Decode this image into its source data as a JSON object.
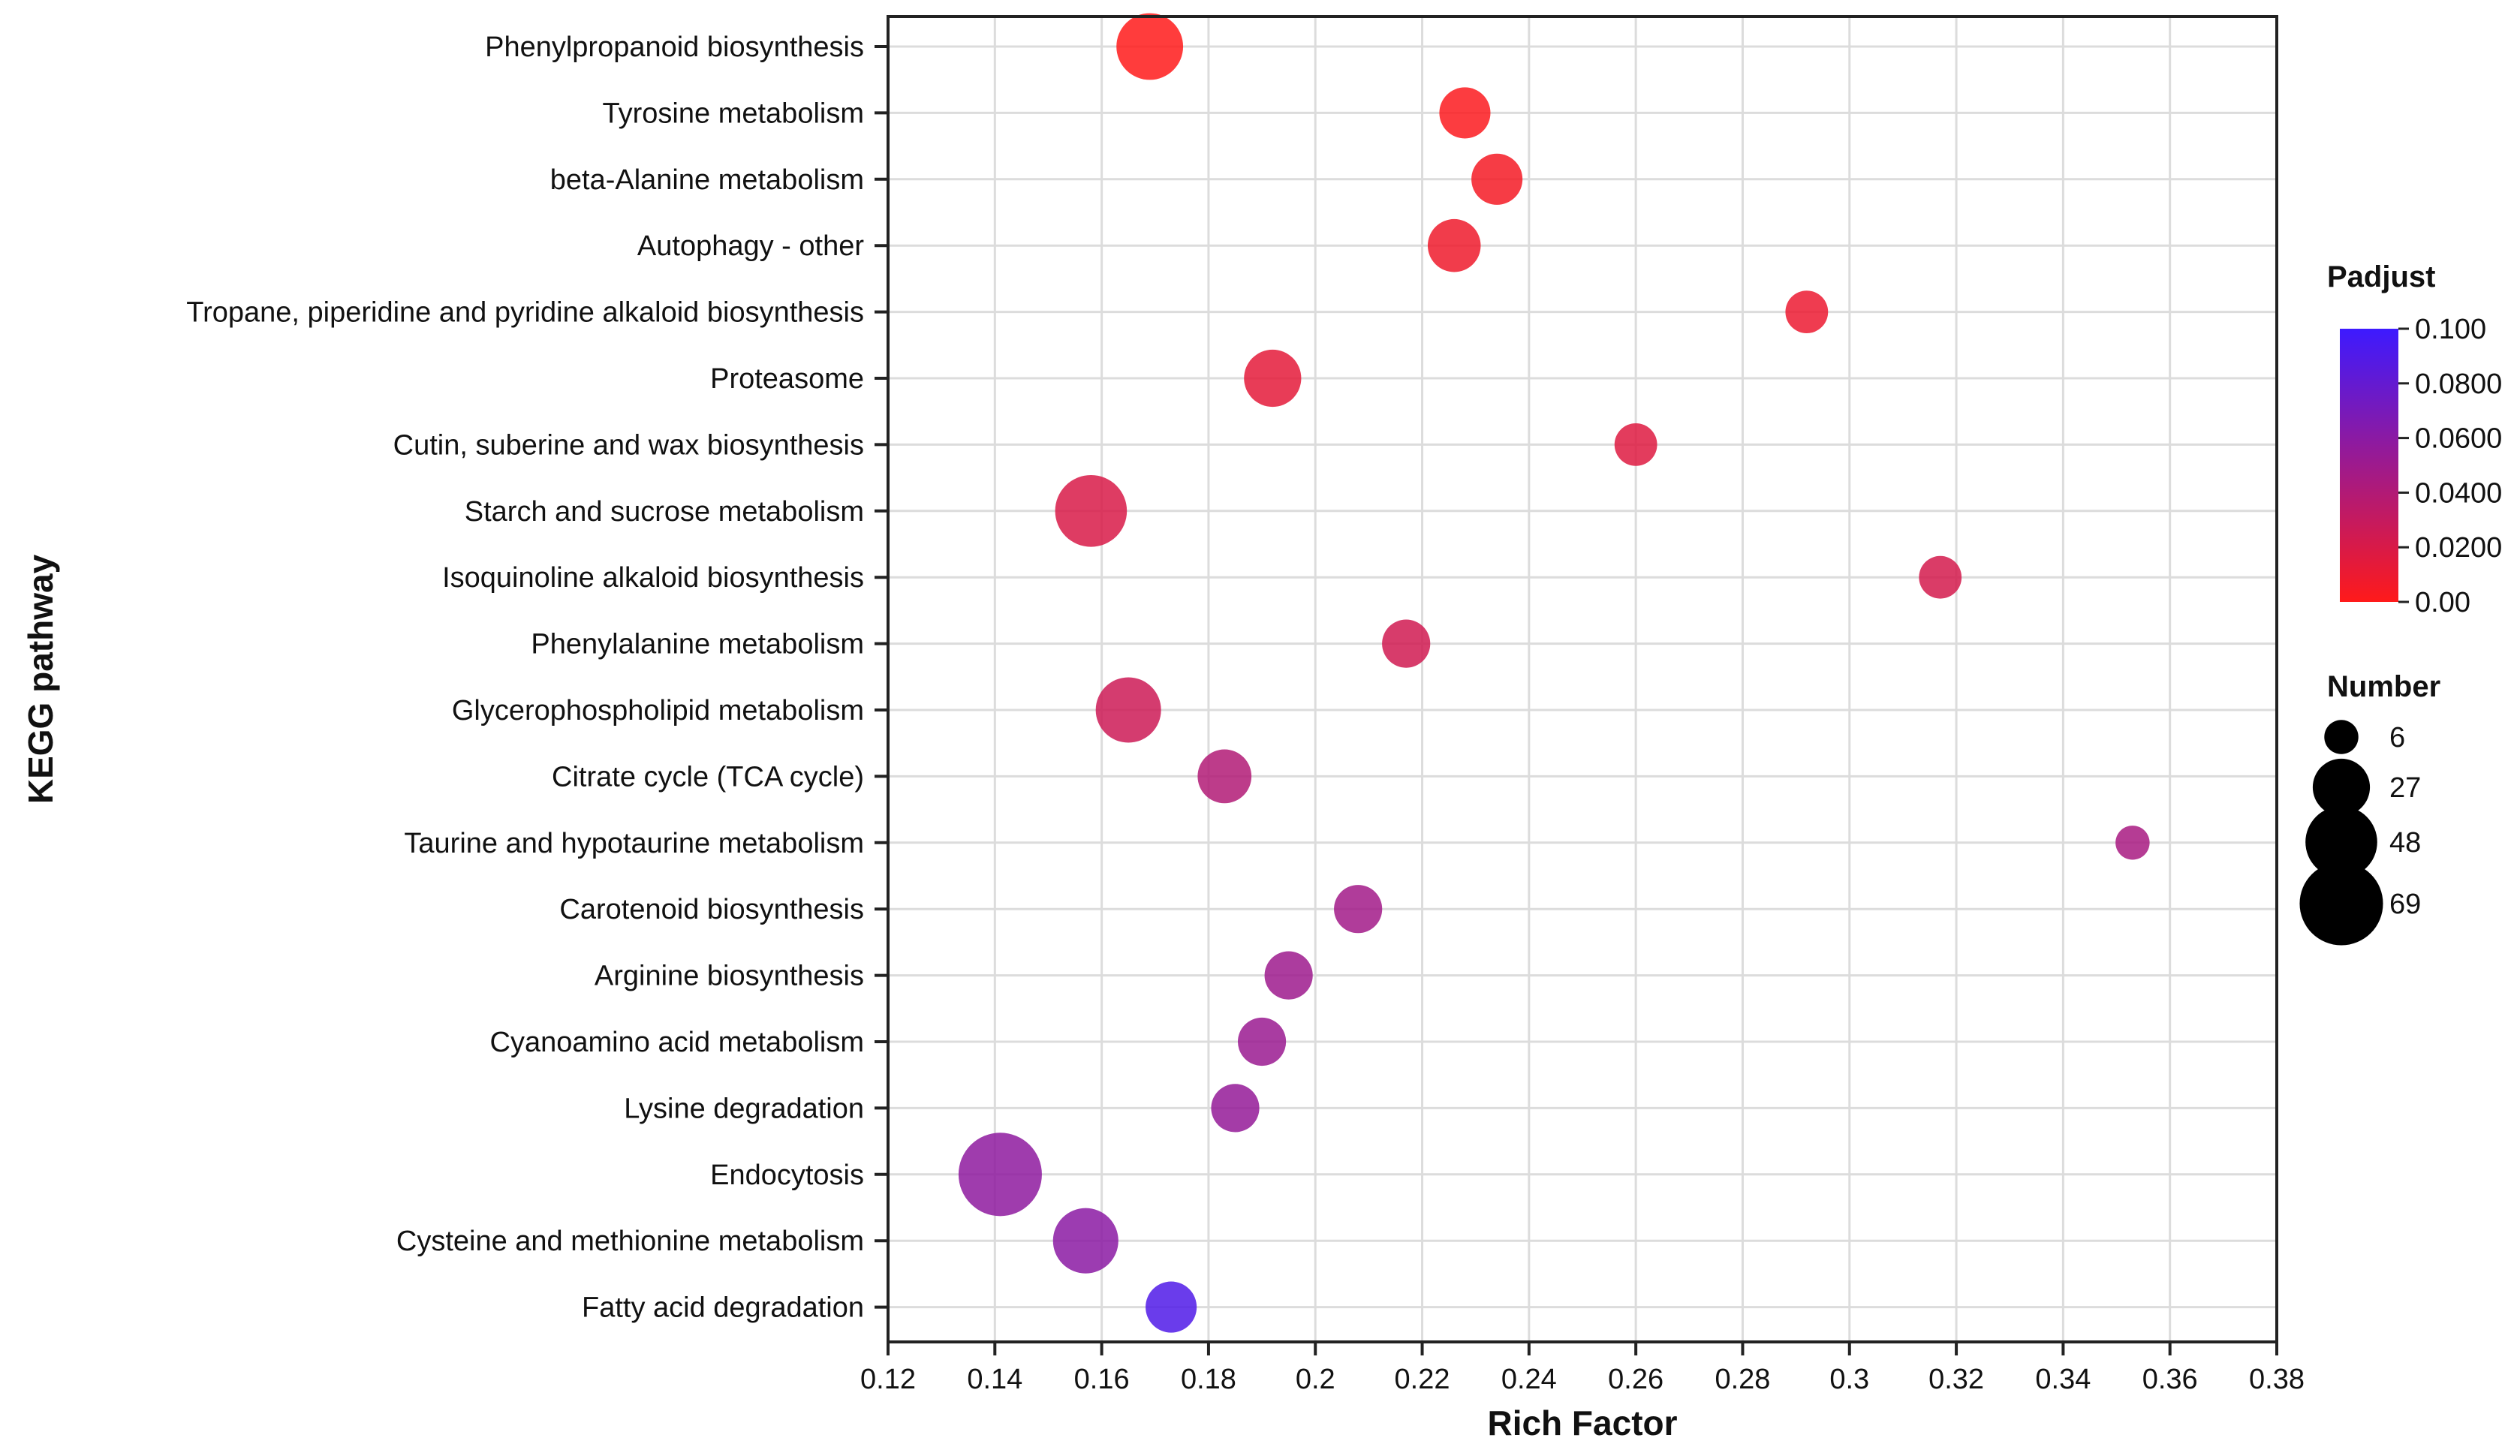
{
  "chart_data": {
    "type": "scatter",
    "xlabel": "Rich Factor",
    "ylabel": "KEGG pathway",
    "xlim": [
      0.12,
      0.38
    ],
    "x_ticks": [
      0.12,
      0.14,
      0.16,
      0.18,
      0.2,
      0.22,
      0.24,
      0.26,
      0.28,
      0.3,
      0.32,
      0.34,
      0.36,
      0.38
    ],
    "x_tick_labels": [
      "0.12",
      "0.14",
      "0.16",
      "0.18",
      "0.2",
      "0.22",
      "0.24",
      "0.26",
      "0.28",
      "0.3",
      "0.32",
      "0.34",
      "0.36",
      "0.38"
    ],
    "grid": true,
    "points": [
      {
        "pathway": "Phenylpropanoid biosynthesis",
        "rich_factor": 0.169,
        "number": 40,
        "padjust": 0.0
      },
      {
        "pathway": "Tyrosine metabolism",
        "rich_factor": 0.228,
        "number": 20,
        "padjust": 0.002
      },
      {
        "pathway": "beta-Alanine metabolism",
        "rich_factor": 0.234,
        "number": 20,
        "padjust": 0.005
      },
      {
        "pathway": "Autophagy - other",
        "rich_factor": 0.226,
        "number": 22,
        "padjust": 0.008
      },
      {
        "pathway": "Tropane, piperidine and pyridine alkaloid biosynthesis",
        "rich_factor": 0.292,
        "number": 12,
        "padjust": 0.01
      },
      {
        "pathway": "Proteasome",
        "rich_factor": 0.192,
        "number": 27,
        "padjust": 0.014
      },
      {
        "pathway": "Cutin, suberine and wax biosynthesis",
        "rich_factor": 0.26,
        "number": 12,
        "padjust": 0.017
      },
      {
        "pathway": "Starch and sucrose metabolism",
        "rich_factor": 0.158,
        "number": 48,
        "padjust": 0.02
      },
      {
        "pathway": "Isoquinoline alkaloid biosynthesis",
        "rich_factor": 0.317,
        "number": 12,
        "padjust": 0.022
      },
      {
        "pathway": "Phenylalanine metabolism",
        "rich_factor": 0.217,
        "number": 17,
        "padjust": 0.024
      },
      {
        "pathway": "Glycerophospholipid metabolism",
        "rich_factor": 0.165,
        "number": 38,
        "padjust": 0.026
      },
      {
        "pathway": "Citrate cycle (TCA cycle)",
        "rich_factor": 0.183,
        "number": 23,
        "padjust": 0.04
      },
      {
        "pathway": "Taurine and hypotaurine metabolism",
        "rich_factor": 0.353,
        "number": 6,
        "padjust": 0.045
      },
      {
        "pathway": "Carotenoid biosynthesis",
        "rich_factor": 0.208,
        "number": 17,
        "padjust": 0.048
      },
      {
        "pathway": "Arginine biosynthesis",
        "rich_factor": 0.195,
        "number": 17,
        "padjust": 0.05
      },
      {
        "pathway": "Cyanoamino acid metabolism",
        "rich_factor": 0.19,
        "number": 17,
        "padjust": 0.052
      },
      {
        "pathway": "Lysine degradation",
        "rich_factor": 0.185,
        "number": 17,
        "padjust": 0.055
      },
      {
        "pathway": "Endocytosis",
        "rich_factor": 0.141,
        "number": 69,
        "padjust": 0.058
      },
      {
        "pathway": "Cysteine and methionine metabolism",
        "rich_factor": 0.157,
        "number": 38,
        "padjust": 0.06
      },
      {
        "pathway": "Fatty acid degradation",
        "rich_factor": 0.173,
        "number": 20,
        "padjust": 0.09
      }
    ],
    "color_legend": {
      "title": "Padjust",
      "min_color": "#ff1a1a",
      "max_color": "#3d1aff",
      "range": [
        0.0,
        0.1
      ],
      "ticks": [
        0.1,
        0.08,
        0.06,
        0.04,
        0.02,
        0.0
      ],
      "tick_labels": [
        "0.100",
        "0.0800",
        "0.0600",
        "0.0400",
        "0.0200",
        "0.00"
      ]
    },
    "size_legend": {
      "title": "Number",
      "values": [
        6,
        27,
        48,
        69
      ],
      "labels": [
        "6",
        "27",
        "48",
        "69"
      ]
    }
  }
}
